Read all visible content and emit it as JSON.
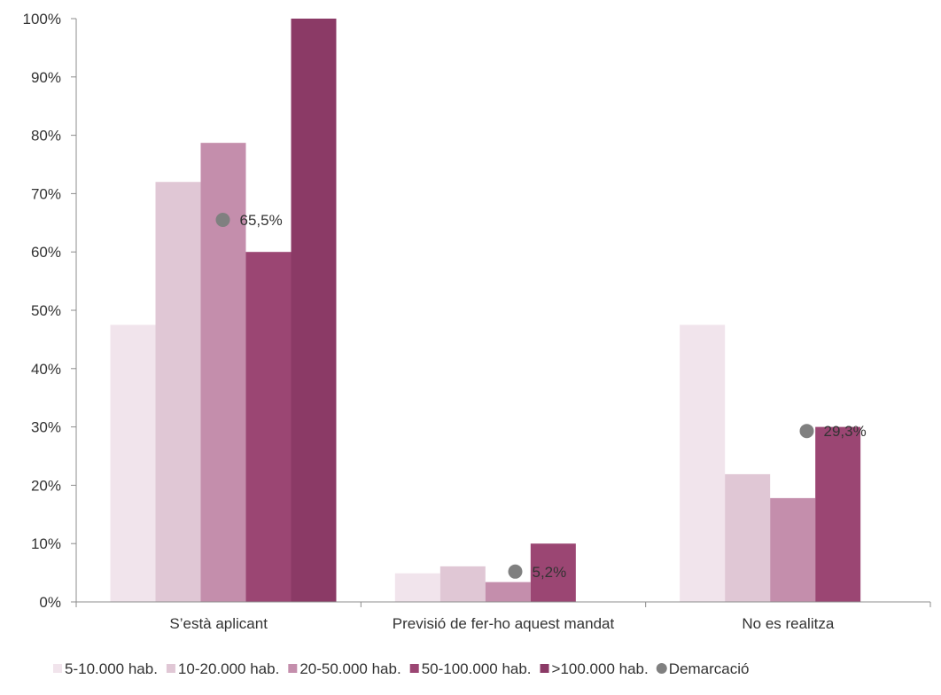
{
  "chart_data": {
    "type": "bar",
    "categories": [
      "S’està aplicant",
      "Previsió de fer-ho aquest mandat",
      "No es realitza"
    ],
    "series": [
      {
        "name": "5-10.000 hab.",
        "color": "#f1e4ec",
        "values": [
          47.5,
          4.9,
          47.5
        ]
      },
      {
        "name": "10-20.000 hab.",
        "color": "#e0c7d5",
        "values": [
          72.0,
          6.1,
          21.9
        ]
      },
      {
        "name": "20-50.000 hab.",
        "color": "#c48eac",
        "values": [
          78.7,
          3.4,
          17.8
        ]
      },
      {
        "name": "50-100.000 hab.",
        "color": "#9b4673",
        "values": [
          60.0,
          10.0,
          30.0
        ]
      },
      {
        "name": ">100.000 hab.",
        "color": "#8b3a66",
        "values": [
          100.0,
          0,
          0
        ]
      }
    ],
    "markers": {
      "name": "Demarcació",
      "color": "#808080",
      "values": [
        65.5,
        5.2,
        29.3
      ],
      "labels": [
        "65,5%",
        "5,2%",
        "29,3%"
      ]
    },
    "ylim": [
      0,
      100
    ],
    "yticks": [
      "0%",
      "10%",
      "20%",
      "30%",
      "40%",
      "50%",
      "60%",
      "70%",
      "80%",
      "90%",
      "100%"
    ],
    "legend_position": "bottom",
    "grid": false
  }
}
